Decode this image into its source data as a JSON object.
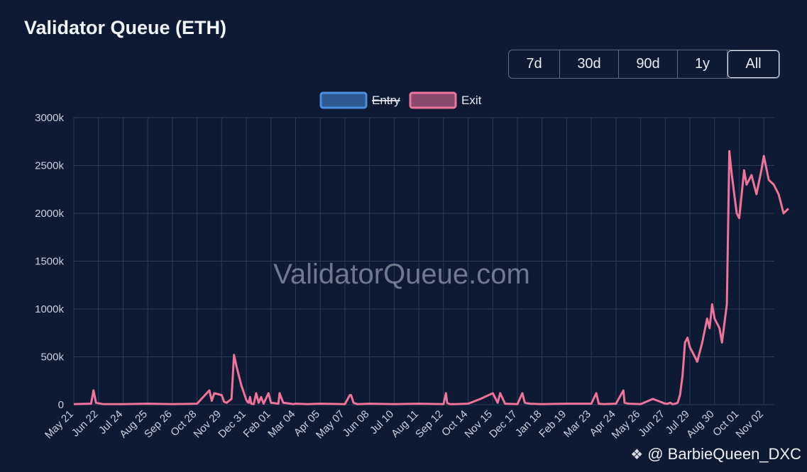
{
  "title": "Validator Queue (ETH)",
  "range_buttons": [
    "7d",
    "30d",
    "90d",
    "1y",
    "All"
  ],
  "active_range": "All",
  "site_watermark": "ValidatorQueue.com",
  "credit": "@ BarbieQueen_DXC",
  "chart_data": {
    "type": "line",
    "legend": [
      {
        "name": "Entry",
        "hidden": true,
        "color": "#4a8fe0"
      },
      {
        "name": "Exit",
        "hidden": false,
        "color": "#f0739b"
      }
    ],
    "legend_position": "top-center",
    "grid": true,
    "ylim": [
      0,
      3000
    ],
    "y_ticks": [
      "0",
      "500k",
      "1000k",
      "1500k",
      "2000k",
      "2500k",
      "3000k"
    ],
    "x_ticks": [
      "May 21",
      "Jun 22",
      "Jul 24",
      "Aug 25",
      "Sep 26",
      "Oct 28",
      "Nov 29",
      "Dec 31",
      "Feb 01",
      "Mar 04",
      "Apr 05",
      "May 07",
      "Jun 08",
      "Jul 10",
      "Aug 11",
      "Sep 12",
      "Oct 14",
      "Nov 15",
      "Dec 17",
      "Jan 18",
      "Feb 19",
      "Mar 23",
      "Apr 24",
      "May 26",
      "Jun 27",
      "Jul 29",
      "Aug 30",
      "Oct 01",
      "Nov 02"
    ],
    "series": [
      {
        "name": "Exit",
        "color": "#f0739b",
        "x": [
          0,
          0.7,
          0.8,
          0.9,
          1.2,
          2,
          3,
          4,
          5,
          5.5,
          5.6,
          5.7,
          6,
          6.1,
          6.2,
          6.4,
          6.5,
          6.6,
          6.8,
          7,
          7.05,
          7.1,
          7.15,
          7.2,
          7.3,
          7.4,
          7.5,
          7.6,
          7.7,
          7.9,
          8,
          8.3,
          8.35,
          8.5,
          8.8,
          8.9,
          9,
          9.5,
          10,
          11,
          11.2,
          11.25,
          11.35,
          11.5,
          12,
          13,
          14,
          15,
          15.1,
          15.15,
          15.25,
          15.5,
          16,
          16.5,
          17,
          17.2,
          17.3,
          17.5,
          18,
          18.2,
          18.3,
          18.5,
          19,
          20,
          21,
          21.2,
          21.3,
          21.5,
          22,
          22.3,
          22.35,
          22.5,
          23,
          23.5,
          24,
          24.1,
          24.2,
          24.3,
          24.4,
          24.5,
          24.6,
          24.7,
          24.8,
          24.9,
          25,
          25.2,
          25.3,
          25.5,
          25.7,
          25.8,
          25.9,
          26,
          26.2,
          26.3,
          26.5,
          26.6,
          26.7,
          26.8,
          26.9,
          27,
          27.2,
          27.3,
          27.5,
          27.7,
          27.9,
          28,
          28.2,
          28.4,
          28.6,
          28.8,
          29
        ],
        "y": [
          5,
          10,
          150,
          20,
          5,
          5,
          10,
          5,
          10,
          150,
          40,
          120,
          100,
          30,
          20,
          60,
          520,
          400,
          200,
          50,
          30,
          20,
          80,
          10,
          5,
          120,
          20,
          80,
          10,
          120,
          20,
          10,
          120,
          20,
          10,
          5,
          10,
          5,
          10,
          5,
          100,
          100,
          20,
          5,
          10,
          5,
          10,
          5,
          120,
          20,
          5,
          5,
          10,
          60,
          120,
          20,
          120,
          10,
          5,
          120,
          20,
          10,
          5,
          10,
          10,
          120,
          10,
          5,
          10,
          150,
          20,
          10,
          5,
          60,
          10,
          10,
          20,
          5,
          10,
          20,
          100,
          300,
          650,
          700,
          600,
          500,
          450,
          650,
          900,
          800,
          1050,
          900,
          800,
          650,
          1050,
          2650,
          2400,
          2200,
          2000,
          1950,
          2450,
          2300,
          2400,
          2200,
          2450,
          2600,
          2350,
          2300,
          2200,
          2000,
          2050
        ]
      }
    ]
  }
}
